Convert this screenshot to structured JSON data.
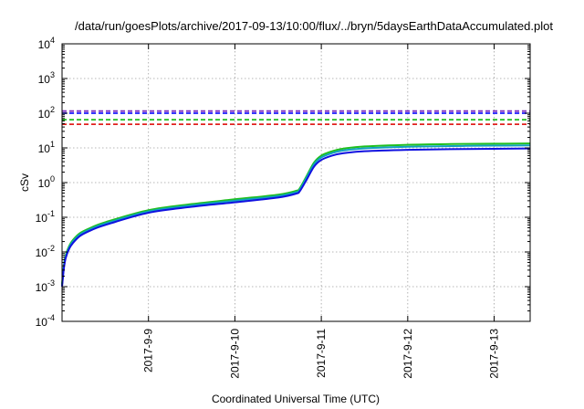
{
  "chart_data": {
    "type": "line",
    "title": "/data/run/goesPlots/archive/2017-09-13/10:00/flux/../bryn/5daysEarthDataAccumulated.plot",
    "xlabel": "Coordinated Universal Time (UTC)",
    "ylabel": "cSv",
    "x_ticks": [
      "2017-9-9",
      "2017-9-10",
      "2017-9-11",
      "2017-9-12",
      "2017-9-13"
    ],
    "xlim": [
      "2017-09-08 00:00",
      "2017-09-13 10:00"
    ],
    "y_scale": "log",
    "ylim": [
      0.0001,
      10000
    ],
    "y_ticks": [
      {
        "base": "10",
        "exp": "-4"
      },
      {
        "base": "10",
        "exp": "-3"
      },
      {
        "base": "10",
        "exp": "-2"
      },
      {
        "base": "10",
        "exp": "-1"
      },
      {
        "base": "10",
        "exp": "0"
      },
      {
        "base": "10",
        "exp": "1"
      },
      {
        "base": "10",
        "exp": "2"
      },
      {
        "base": "10",
        "exp": "3"
      },
      {
        "base": "10",
        "exp": "4"
      }
    ],
    "grid": true,
    "reference_lines": [
      {
        "color": "#7b2fbe",
        "y": 115
      },
      {
        "color": "#1a1aff",
        "y": 100
      },
      {
        "color": "#1fbf1f",
        "y": 65
      },
      {
        "color": "#e0201e",
        "y": 48
      }
    ],
    "series": [
      {
        "color": "#1fbf1f",
        "x": [
          "2017-09-08 00:00",
          "2017-09-08 00:30",
          "2017-09-08 01:00",
          "2017-09-08 02:00",
          "2017-09-08 03:00",
          "2017-09-08 05:00",
          "2017-09-08 08:00",
          "2017-09-08 12:00",
          "2017-09-09 00:00",
          "2017-09-09 12:00",
          "2017-09-10 00:00",
          "2017-09-10 12:00",
          "2017-09-10 17:00",
          "2017-09-10 18:00",
          "2017-09-10 20:00",
          "2017-09-10 22:00",
          "2017-09-11 00:00",
          "2017-09-11 03:00",
          "2017-09-11 06:00",
          "2017-09-11 12:00",
          "2017-09-12 00:00",
          "2017-09-12 12:00",
          "2017-09-13 00:00",
          "2017-09-13 10:00"
        ],
        "y": [
          0.0012,
          0.004,
          0.008,
          0.015,
          0.022,
          0.035,
          0.05,
          0.072,
          0.16,
          0.24,
          0.33,
          0.45,
          0.58,
          0.68,
          1.6,
          3.8,
          6.0,
          8.0,
          9.5,
          11.0,
          12.3,
          12.9,
          13.2,
          13.4
        ]
      },
      {
        "color": "#10a0c0",
        "x": [
          "2017-09-08 00:00",
          "2017-09-08 00:30",
          "2017-09-08 01:00",
          "2017-09-08 02:00",
          "2017-09-08 03:00",
          "2017-09-08 05:00",
          "2017-09-08 08:00",
          "2017-09-08 12:00",
          "2017-09-09 00:00",
          "2017-09-09 12:00",
          "2017-09-10 00:00",
          "2017-09-10 12:00",
          "2017-09-10 17:00",
          "2017-09-10 18:00",
          "2017-09-10 20:00",
          "2017-09-10 22:00",
          "2017-09-11 00:00",
          "2017-09-11 03:00",
          "2017-09-11 06:00",
          "2017-09-11 12:00",
          "2017-09-12 00:00",
          "2017-09-12 12:00",
          "2017-09-13 00:00",
          "2017-09-13 10:00"
        ],
        "y": [
          0.0011,
          0.0037,
          0.0073,
          0.0138,
          0.02,
          0.032,
          0.046,
          0.066,
          0.147,
          0.22,
          0.3,
          0.41,
          0.53,
          0.62,
          1.45,
          3.4,
          5.3,
          7.1,
          8.4,
          9.7,
          10.8,
          11.3,
          11.6,
          11.8
        ]
      },
      {
        "color": "#1010e0",
        "x": [
          "2017-09-08 00:00",
          "2017-09-08 00:30",
          "2017-09-08 01:00",
          "2017-09-08 02:00",
          "2017-09-08 03:00",
          "2017-09-08 05:00",
          "2017-09-08 08:00",
          "2017-09-08 12:00",
          "2017-09-09 00:00",
          "2017-09-09 12:00",
          "2017-09-10 00:00",
          "2017-09-10 12:00",
          "2017-09-10 17:00",
          "2017-09-10 18:00",
          "2017-09-10 20:00",
          "2017-09-10 22:00",
          "2017-09-11 00:00",
          "2017-09-11 03:00",
          "2017-09-11 06:00",
          "2017-09-11 12:00",
          "2017-09-12 00:00",
          "2017-09-12 12:00",
          "2017-09-13 00:00",
          "2017-09-13 10:00"
        ],
        "y": [
          0.001,
          0.0033,
          0.0066,
          0.0125,
          0.018,
          0.029,
          0.042,
          0.06,
          0.135,
          0.2,
          0.27,
          0.37,
          0.48,
          0.56,
          1.25,
          2.9,
          4.5,
          6.0,
          7.0,
          8.0,
          8.8,
          9.2,
          9.4,
          9.6
        ]
      }
    ]
  }
}
